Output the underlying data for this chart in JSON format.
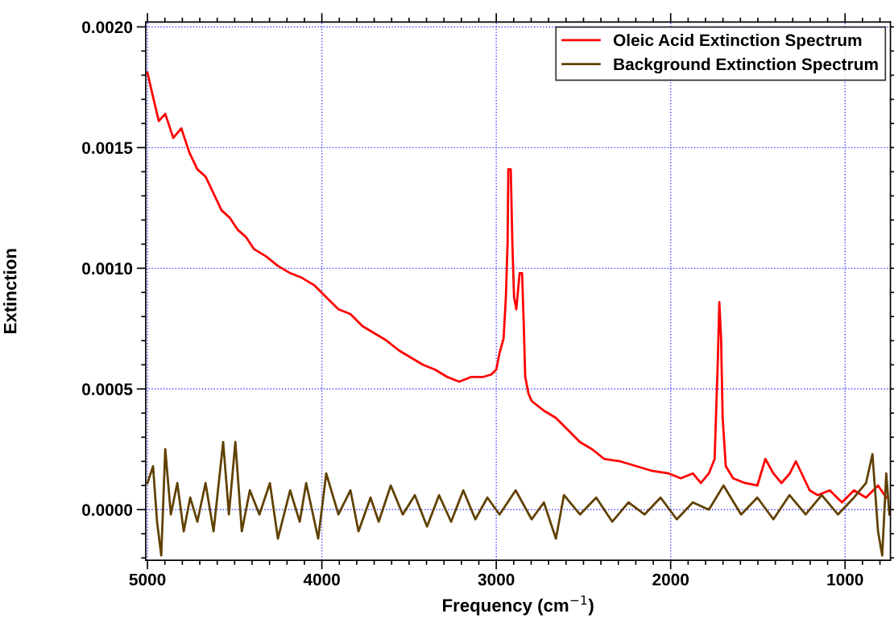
{
  "chart_data": {
    "type": "line",
    "xlabel": "Frequency (cm$^{−1}$)",
    "ylabel": "Extinction",
    "xlim": [
      5010,
      740
    ],
    "xticks": [
      5000,
      4000,
      3000,
      2000,
      1000
    ],
    "ylim": [
      -0.00021,
      0.00202
    ],
    "yticks": [
      {
        "value": 0,
        "label": "0.0000"
      },
      {
        "value": 0.0005,
        "label": "0.0005"
      },
      {
        "value": 0.001,
        "label": "0.0010"
      },
      {
        "value": 0.0015,
        "label": "0.0015"
      },
      {
        "value": 0.002,
        "label": "0.0020"
      }
    ],
    "grid": true,
    "legend": "top right",
    "line_style": "solid",
    "marker": "none",
    "series": [
      {
        "name": "Oleic Acid Extinction Spectrum",
        "color": "#ff0000",
        "x": [
          5000,
          4968,
          4935,
          4898,
          4852,
          4806,
          4760,
          4714,
          4667,
          4621,
          4575,
          4529,
          4483,
          4436,
          4390,
          4321,
          4252,
          4182,
          4113,
          4044,
          3975,
          3905,
          3836,
          3767,
          3697,
          3628,
          3559,
          3490,
          3420,
          3351,
          3282,
          3212,
          3143,
          3074,
          3028,
          3000,
          2981,
          2958,
          2945,
          2935,
          2931,
          2917,
          2908,
          2898,
          2885,
          2866,
          2852,
          2843,
          2834,
          2815,
          2797,
          2727,
          2658,
          2589,
          2520,
          2450,
          2381,
          2289,
          2196,
          2104,
          2012,
          1942,
          1873,
          1827,
          1781,
          1748,
          1730,
          1721,
          1711,
          1702,
          1684,
          1642,
          1573,
          1503,
          1457,
          1411,
          1365,
          1317,
          1282,
          1249,
          1203,
          1157,
          1088,
          1018,
          949,
          880,
          811,
          764
        ],
        "values": [
          0.00181,
          0.00171,
          0.00161,
          0.00164,
          0.00154,
          0.00158,
          0.00148,
          0.00141,
          0.00138,
          0.00131,
          0.00124,
          0.00121,
          0.00116,
          0.00113,
          0.00108,
          0.00105,
          0.00101,
          0.00098,
          0.00096,
          0.00093,
          0.00088,
          0.00083,
          0.00081,
          0.00076,
          0.00073,
          0.0007,
          0.00066,
          0.00063,
          0.0006,
          0.00058,
          0.00055,
          0.00053,
          0.00055,
          0.00055,
          0.00056,
          0.00058,
          0.00065,
          0.00071,
          0.00088,
          0.00111,
          0.00141,
          0.00141,
          0.00111,
          0.00088,
          0.00083,
          0.00098,
          0.00098,
          0.00078,
          0.00055,
          0.00048,
          0.00045,
          0.00041,
          0.00038,
          0.00033,
          0.00028,
          0.00025,
          0.00021,
          0.0002,
          0.00018,
          0.00016,
          0.00015,
          0.00013,
          0.00015,
          0.00011,
          0.00015,
          0.00021,
          0.00061,
          0.00086,
          0.00071,
          0.00038,
          0.00018,
          0.00013,
          0.00011,
          0.0001,
          0.00021,
          0.00015,
          0.00011,
          0.00015,
          0.0002,
          0.00015,
          8e-05,
          6e-05,
          8e-05,
          3e-05,
          8e-05,
          5e-05,
          0.0001,
          5e-05
        ]
      },
      {
        "name": "Background Extinction Spectrum",
        "color": "#614100",
        "x": [
          5000,
          4968,
          4945,
          4921,
          4898,
          4866,
          4829,
          4792,
          4755,
          4714,
          4667,
          4621,
          4566,
          4533,
          4496,
          4459,
          4413,
          4358,
          4298,
          4252,
          4182,
          4127,
          4090,
          4021,
          3975,
          3905,
          3836,
          3790,
          3721,
          3674,
          3605,
          3536,
          3467,
          3397,
          3328,
          3259,
          3189,
          3120,
          3051,
          2981,
          2889,
          2797,
          2727,
          2658,
          2612,
          2520,
          2427,
          2335,
          2242,
          2150,
          2058,
          1965,
          1873,
          1781,
          1697,
          1596,
          1503,
          1411,
          1319,
          1226,
          1134,
          1041,
          949,
          880,
          843,
          811,
          787,
          764,
          746
        ],
        "values": [
          0.00011,
          0.00018,
          -5e-05,
          -0.00019,
          0.00025,
          -2e-05,
          0.00011,
          -9e-05,
          5e-05,
          -5e-05,
          0.00011,
          -9e-05,
          0.00028,
          -2e-05,
          0.00028,
          -9e-05,
          8e-05,
          -2e-05,
          0.00011,
          -0.00012,
          8e-05,
          -5e-05,
          0.00011,
          -0.00012,
          0.00015,
          -2e-05,
          8e-05,
          -9e-05,
          5e-05,
          -5e-05,
          0.0001,
          -2e-05,
          6e-05,
          -7e-05,
          6e-05,
          -5e-05,
          8e-05,
          -4e-05,
          5e-05,
          -2e-05,
          8e-05,
          -4e-05,
          3e-05,
          -0.00012,
          6e-05,
          -2e-05,
          5e-05,
          -5e-05,
          3e-05,
          -2e-05,
          5e-05,
          -4e-05,
          3e-05,
          0.0,
          0.0001,
          -2e-05,
          5e-05,
          -4e-05,
          6e-05,
          -2e-05,
          6e-05,
          -2e-05,
          5e-05,
          0.00011,
          0.00023,
          -9e-05,
          -0.00019,
          0.00015,
          -2e-05
        ]
      }
    ]
  }
}
